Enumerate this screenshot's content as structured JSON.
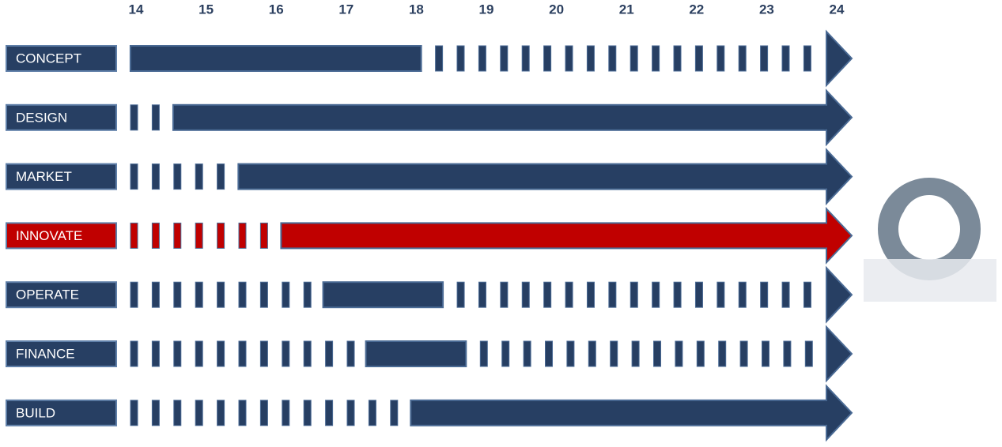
{
  "axis": {
    "labels": [
      "14",
      "15",
      "16",
      "17",
      "18",
      "19",
      "20",
      "21",
      "22",
      "23",
      "24"
    ]
  },
  "rows": [
    {
      "label": "CONCEPT",
      "solid_start": 13.92,
      "solid_end": 18.07,
      "color": "#273f63"
    },
    {
      "label": "DESIGN",
      "solid_start": 14.53,
      "color": "#273f63"
    },
    {
      "label": "MARKET",
      "solid_start": 15.46,
      "color": "#273f63"
    },
    {
      "label": "INNOVATE",
      "solid_start": 16.07,
      "color": "#c00000"
    },
    {
      "label": "OPERATE",
      "solid_start": 16.67,
      "solid_end": 18.38,
      "color": "#273f63"
    },
    {
      "label": "FINANCE",
      "solid_start": 17.28,
      "solid_end": 18.71,
      "color": "#273f63"
    },
    {
      "label": "BUILD",
      "solid_start": 17.92,
      "color": "#273f63"
    }
  ]
}
